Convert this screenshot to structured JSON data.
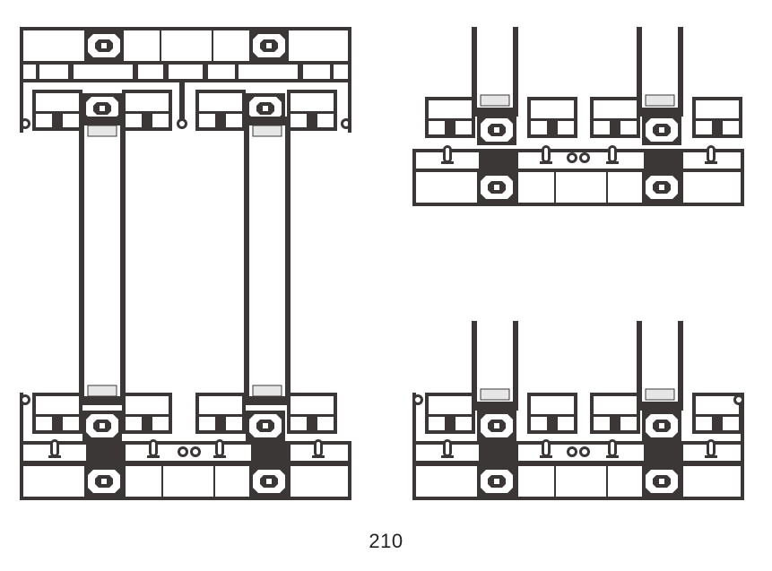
{
  "caption": "210",
  "colors": {
    "profile": "#3b3737",
    "background": "#ffffff",
    "glass_light": "#e6e6e6",
    "caption_text": "#222222"
  },
  "views": [
    "vertical-section",
    "horizontal-section-top",
    "horizontal-section-bottom"
  ]
}
